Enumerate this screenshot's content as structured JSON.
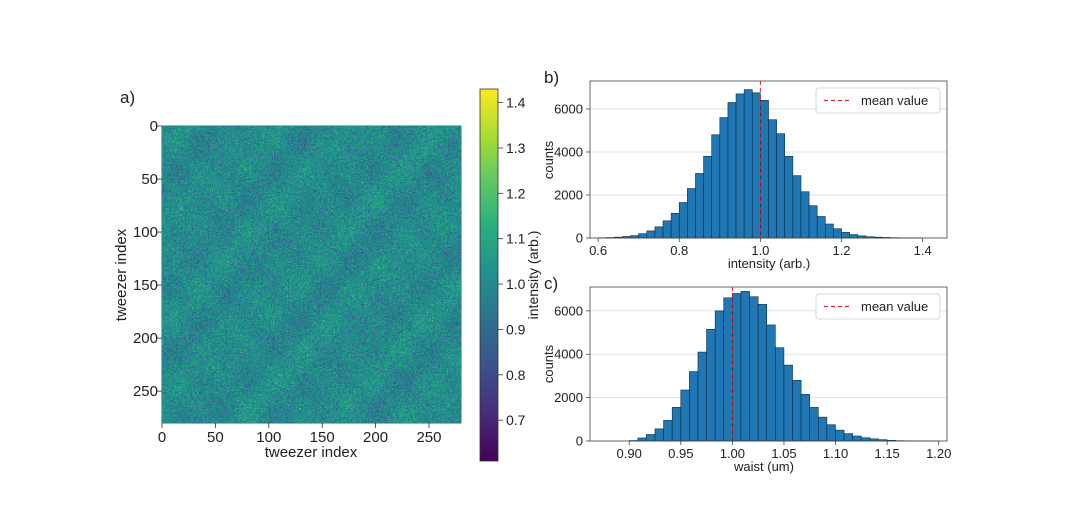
{
  "chart_data": [
    {
      "panel": "a)",
      "type": "heatmap",
      "xlabel": "tweezer index",
      "ylabel": "tweezer index",
      "xlim": [
        0,
        280
      ],
      "ylim": [
        280,
        0
      ],
      "xticks": [
        0,
        50,
        100,
        150,
        200,
        250
      ],
      "yticks": [
        0,
        50,
        100,
        150,
        200,
        250
      ],
      "colorbar": {
        "label": "intensity (arb.)",
        "colormap": "viridis",
        "range": [
          0.61,
          1.43
        ],
        "ticks": [
          0.7,
          0.8,
          0.9,
          1.0,
          1.1,
          1.2,
          1.3,
          1.4
        ]
      },
      "colormap_stops": [
        "#440154",
        "#472c7a",
        "#3b518b",
        "#2c718e",
        "#21908d",
        "#27ad81",
        "#5cc863",
        "#aadc32",
        "#fde725"
      ],
      "value_distribution": {
        "mean": 1.0,
        "std": 0.075
      }
    },
    {
      "panel": "b)",
      "type": "bar",
      "title": "",
      "xlabel": "intensity (arb.)",
      "ylabel": "counts",
      "xlim": [
        0.58,
        1.46
      ],
      "ylim": [
        0,
        7300
      ],
      "xticks": [
        0.6,
        0.8,
        1.0,
        1.2,
        1.4
      ],
      "yticks": [
        0,
        2000,
        4000,
        6000
      ],
      "grid": "horizontal",
      "legend": {
        "position": "top-right",
        "entries": [
          "mean value"
        ]
      },
      "bar_color": "#1f77b4",
      "mean_color": "#d62728",
      "mean_value": 1.0,
      "bin_start": 0.6,
      "bin_width": 0.02,
      "values": [
        10,
        20,
        40,
        70,
        110,
        200,
        330,
        520,
        800,
        1150,
        1650,
        2300,
        3000,
        3800,
        4800,
        5600,
        6300,
        6700,
        6900,
        6750,
        6400,
        5500,
        4850,
        3800,
        2900,
        2150,
        1500,
        1000,
        650,
        430,
        260,
        160,
        100,
        60,
        40,
        25,
        15,
        10,
        5,
        3
      ]
    },
    {
      "panel": "c)",
      "type": "bar",
      "title": "",
      "xlabel": "waist (um)",
      "ylabel": "counts",
      "xlim": [
        0.862,
        1.208
      ],
      "ylim": [
        0,
        7100
      ],
      "xticks": [
        0.9,
        0.95,
        1.0,
        1.05,
        1.1,
        1.15,
        1.2
      ],
      "yticks": [
        0,
        2000,
        4000,
        6000
      ],
      "grid": "horizontal",
      "legend": {
        "position": "top-right",
        "entries": [
          "mean value"
        ]
      },
      "bar_color": "#1f77b4",
      "mean_color": "#d62728",
      "mean_value": 1.0,
      "bin_start": 0.9,
      "bin_width": 0.00833,
      "values": [
        20,
        140,
        300,
        560,
        950,
        1550,
        2350,
        3200,
        4100,
        5150,
        6000,
        6600,
        6800,
        6900,
        6650,
        6300,
        5350,
        4300,
        3500,
        2800,
        2150,
        1550,
        1100,
        750,
        500,
        340,
        230,
        150,
        100,
        60,
        30,
        15,
        8,
        4,
        2,
        1
      ]
    }
  ]
}
